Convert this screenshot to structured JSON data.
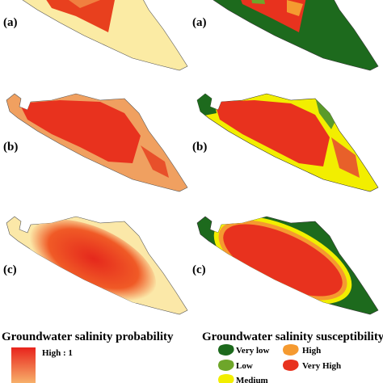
{
  "left_maps": [
    "(a)",
    "(b)",
    "(c)"
  ],
  "right_maps": [
    "(a)",
    "(b)",
    "(c)"
  ],
  "legend_left": {
    "title": "Groundwater salinity probability",
    "high_label": "High : 1"
  },
  "legend_right": {
    "title": "Groundwater salinity susceptibility",
    "items": [
      "Very low",
      "High",
      "Low",
      "Very High",
      "Medium"
    ]
  }
}
